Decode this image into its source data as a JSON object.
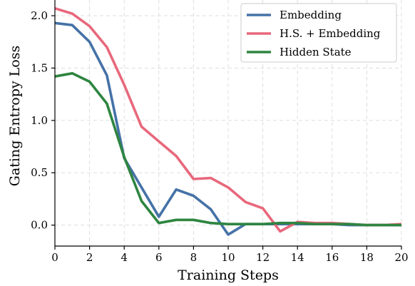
{
  "chart_data": {
    "type": "line",
    "title": "",
    "xlabel": "Training Steps",
    "ylabel": "Gating Entropy Loss",
    "xlim": [
      0,
      20
    ],
    "ylim": [
      -0.2,
      2.15
    ],
    "x_ticks": [
      0,
      2,
      4,
      6,
      8,
      10,
      12,
      14,
      16,
      18,
      20
    ],
    "y_ticks": [
      0.0,
      0.5,
      1.0,
      1.5,
      2.0
    ],
    "y_tick_labels": [
      "0.0",
      "0.5",
      "1.0",
      "1.5",
      "2.0"
    ],
    "grid": true,
    "legend_position": "top-right",
    "x": [
      0,
      1,
      2,
      3,
      4,
      5,
      6,
      7,
      8,
      9,
      10,
      11,
      12,
      13,
      14,
      15,
      16,
      17,
      18,
      19,
      20
    ],
    "series": [
      {
        "name": "Embedding",
        "color": "#4572a7",
        "values": [
          1.93,
          1.91,
          1.75,
          1.43,
          0.64,
          0.36,
          0.08,
          0.34,
          0.28,
          0.15,
          -0.09,
          0.01,
          0.01,
          0.01,
          0.01,
          0.01,
          0.01,
          0.0,
          0.0,
          0.0,
          0.0
        ]
      },
      {
        "name": "H.S. + Embedding",
        "color": "#e8687c",
        "values": [
          2.07,
          2.02,
          1.9,
          1.7,
          1.34,
          0.94,
          0.8,
          0.66,
          0.44,
          0.45,
          0.36,
          0.22,
          0.16,
          -0.06,
          0.03,
          0.02,
          0.02,
          0.01,
          0.0,
          0.0,
          0.01
        ]
      },
      {
        "name": "Hidden State",
        "color": "#2e8540",
        "values": [
          1.42,
          1.45,
          1.37,
          1.16,
          0.65,
          0.23,
          0.02,
          0.05,
          0.05,
          0.02,
          0.01,
          0.01,
          0.01,
          0.02,
          0.02,
          0.01,
          0.01,
          0.01,
          0.0,
          0.0,
          0.0
        ]
      }
    ]
  }
}
